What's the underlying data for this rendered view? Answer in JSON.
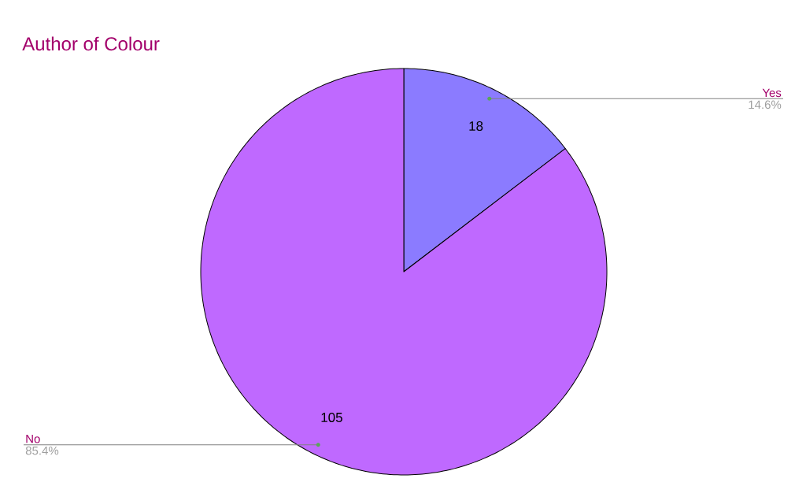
{
  "chart_data": {
    "type": "pie",
    "title": "Author of Colour",
    "categories": [
      "Yes",
      "No"
    ],
    "values": [
      18,
      105
    ],
    "colors": [
      "#8b7bff",
      "#bf69ff"
    ],
    "data_labels": true,
    "annotations": [
      "14.6%",
      "85.4%"
    ]
  }
}
